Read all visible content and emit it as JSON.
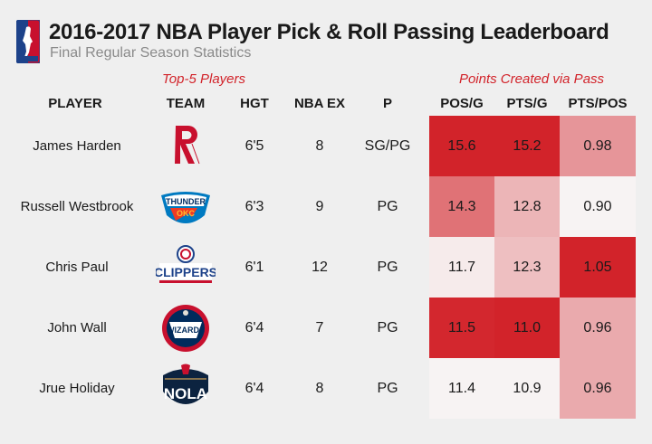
{
  "title": "2016-2017 NBA Player Pick & Roll Passing Leaderboard",
  "subtitle": "Final Regular Season Statistics",
  "group_left": "Top-5 Players",
  "group_right": "Points Created via Pass",
  "columns": {
    "player": "PLAYER",
    "team": "TEAM",
    "hgt": "HGT",
    "nbaex": "NBA EX",
    "pos": "P",
    "posg": "POS/G",
    "ptsg": "PTS/G",
    "ptspos": "PTS/POS"
  },
  "colors": {
    "accent": "#d2232a",
    "heat_low": "#f7f3f3",
    "heat_high": "#d2232a",
    "background": "#efefef"
  },
  "chart_data": {
    "type": "table",
    "rows": [
      {
        "player": "James Harden",
        "team_logo": "rockets-logo",
        "hgt": "6'5",
        "nbaex": "8",
        "pos": "SG/PG",
        "posg": "15.6",
        "ptsg": "15.2",
        "ptspos": "0.98"
      },
      {
        "player": "Russell Westbrook",
        "team_logo": "thunder-logo",
        "hgt": "6'3",
        "nbaex": "9",
        "pos": "PG",
        "posg": "14.3",
        "ptsg": "12.8",
        "ptspos": "0.90"
      },
      {
        "player": "Chris Paul",
        "team_logo": "clippers-logo",
        "hgt": "6'1",
        "nbaex": "12",
        "pos": "PG",
        "posg": "11.7",
        "ptsg": "12.3",
        "ptspos": "1.05"
      },
      {
        "player": "John Wall",
        "team_logo": "wizards-logo",
        "hgt": "6'4",
        "nbaex": "7",
        "pos": "PG",
        "posg": "11.5",
        "ptsg": "11.0",
        "ptspos": "0.96"
      },
      {
        "player": "Jrue Holiday",
        "team_logo": "pelicans-logo",
        "hgt": "6'4",
        "nbaex": "8",
        "pos": "PG",
        "posg": "11.4",
        "ptsg": "10.9",
        "ptspos": "0.96"
      }
    ],
    "heat_fill": {
      "posg": [
        1.0,
        0.62,
        0.04,
        0.98,
        0.0
      ],
      "ptsg": [
        1.0,
        0.3,
        0.25,
        1.0,
        0.0
      ],
      "ptspos": [
        0.45,
        0.0,
        1.0,
        0.35,
        0.35
      ]
    }
  }
}
